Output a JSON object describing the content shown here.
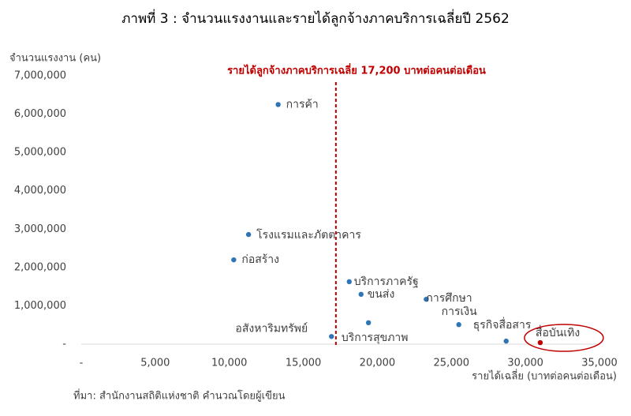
{
  "chart_data": {
    "type": "scatter",
    "title": "ภาพที่ 3 : จำนวนแรงงานและรายได้ลูกจ้างภาคบริการเฉลี่ยปี 2562",
    "y_label": "จำนวนแรงงาน (คน)",
    "x_label": "รายได้เฉลี่ย (บาทต่อคนต่อเดือน)",
    "source": "ที่มา: สำนักงานสถิติแห่งชาติ คำนวณโดยผู้เขียน",
    "xlim": [
      0,
      35000
    ],
    "xticks": [
      {
        "value": 0,
        "label": "-"
      },
      {
        "value": 5000,
        "label": "5,000"
      },
      {
        "value": 10000,
        "label": "10,000"
      },
      {
        "value": 15000,
        "label": "15,000"
      },
      {
        "value": 20000,
        "label": "20,000"
      },
      {
        "value": 25000,
        "label": "25,000"
      },
      {
        "value": 30000,
        "label": "30,000"
      },
      {
        "value": 35000,
        "label": "35,000"
      }
    ],
    "ylim": [
      0,
      7000000
    ],
    "yticks": [
      {
        "value": 0,
        "label": "-"
      },
      {
        "value": 1000000,
        "label": "1,000,000"
      },
      {
        "value": 2000000,
        "label": "2,000,000"
      },
      {
        "value": 3000000,
        "label": "3,000,000"
      },
      {
        "value": 4000000,
        "label": "4,000,000"
      },
      {
        "value": 5000000,
        "label": "5,000,000"
      },
      {
        "value": 6000000,
        "label": "6,000,000"
      },
      {
        "value": 7000000,
        "label": "7,000,000"
      }
    ],
    "reference_line": {
      "x": 17200,
      "label": "รายได้ลูกจ้างภาคบริการเฉลี่ย 17,200 บาทต่อคนต่อเดือน",
      "color": "#c00000"
    },
    "points": [
      {
        "label": "การค้า",
        "x": 13300,
        "y": 6250000,
        "color": "#2e75b6"
      },
      {
        "label": "โรงแรมและภัตตาคาร",
        "x": 11300,
        "y": 2860000,
        "color": "#2e75b6"
      },
      {
        "label": "ก่อสร้าง",
        "x": 10300,
        "y": 2200000,
        "color": "#2e75b6"
      },
      {
        "label": "บริการภาครัฐ",
        "x": 18100,
        "y": 1630000,
        "color": "#2e75b6"
      },
      {
        "label": "ขนส่ง",
        "x": 18900,
        "y": 1300000,
        "color": "#2e75b6"
      },
      {
        "label": "การศึกษา",
        "x": 23300,
        "y": 1170000,
        "color": "#2e75b6"
      },
      {
        "label": "บริการสุขภาพ",
        "x": 19400,
        "y": 560000,
        "color": "#2e75b6"
      },
      {
        "label": "การเงิน",
        "x": 25500,
        "y": 510000,
        "color": "#2e75b6"
      },
      {
        "label": "อสังหาริมทรัพย์",
        "x": 16900,
        "y": 200000,
        "color": "#2e75b6"
      },
      {
        "label": "ธุรกิจสื่อสาร",
        "x": 28700,
        "y": 80000,
        "color": "#2e75b6"
      },
      {
        "label": "สื่อบันเทิง",
        "x": 31000,
        "y": 40000,
        "color": "#c00000"
      }
    ]
  }
}
